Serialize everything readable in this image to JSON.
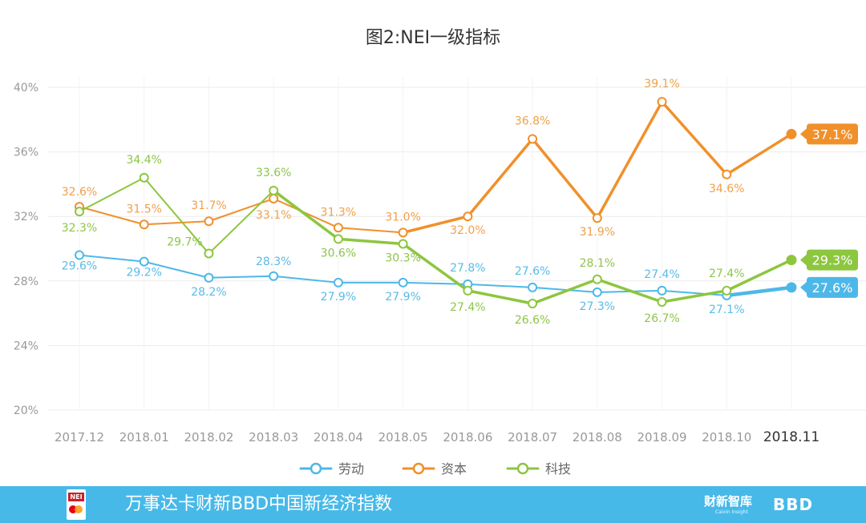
{
  "chart_data": {
    "type": "line",
    "title": "图2:NEI一级指标",
    "xlabel": "",
    "ylabel": "",
    "categories": [
      "2017.12",
      "2018.01",
      "2018.02",
      "2018.03",
      "2018.04",
      "2018.05",
      "2018.06",
      "2018.07",
      "2018.08",
      "2018.09",
      "2018.10",
      "2018.11"
    ],
    "ylim": [
      20,
      40
    ],
    "yticks": [
      20,
      24,
      28,
      32,
      36,
      40
    ],
    "ytick_labels": [
      "20%",
      "24%",
      "28%",
      "32%",
      "36%",
      "40%"
    ],
    "grid": true,
    "legend_position": "bottom-center",
    "series": [
      {
        "name": "劳动",
        "color": "#4db8e8",
        "values": [
          29.6,
          29.2,
          28.2,
          28.3,
          27.9,
          27.9,
          27.8,
          27.6,
          27.3,
          27.4,
          27.1,
          27.6
        ],
        "labels": [
          "29.6%",
          "29.2%",
          "28.2%",
          "28.3%",
          "27.9%",
          "27.9%",
          "27.8%",
          "27.6%",
          "27.3%",
          "27.4%",
          "27.1%",
          "27.6%"
        ]
      },
      {
        "name": "资本",
        "color": "#f0902b",
        "values": [
          32.6,
          31.5,
          31.7,
          33.1,
          31.3,
          31.0,
          32.0,
          36.8,
          31.9,
          39.1,
          34.6,
          37.1
        ],
        "labels": [
          "32.6%",
          "31.5%",
          "31.7%",
          "33.1%",
          "31.3%",
          "31.0%",
          "32.0%",
          "36.8%",
          "31.9%",
          "39.1%",
          "34.6%",
          "37.1%"
        ]
      },
      {
        "name": "科技",
        "color": "#8dc63f",
        "values": [
          32.3,
          34.4,
          29.7,
          33.6,
          30.6,
          30.3,
          27.4,
          26.6,
          28.1,
          26.7,
          27.4,
          29.3
        ],
        "labels": [
          "32.3%",
          "34.4%",
          "29.7%",
          "33.6%",
          "30.6%",
          "30.3%",
          "27.4%",
          "26.6%",
          "28.1%",
          "26.7%",
          "27.4%",
          "29.3%"
        ]
      }
    ]
  },
  "footer": {
    "logo_text": "NEI",
    "title": "万事达卡财新BBD中国新经济指数",
    "brand1": "财新智库",
    "brand1_sub": "Caixin Insight",
    "brand2": "BBD"
  }
}
